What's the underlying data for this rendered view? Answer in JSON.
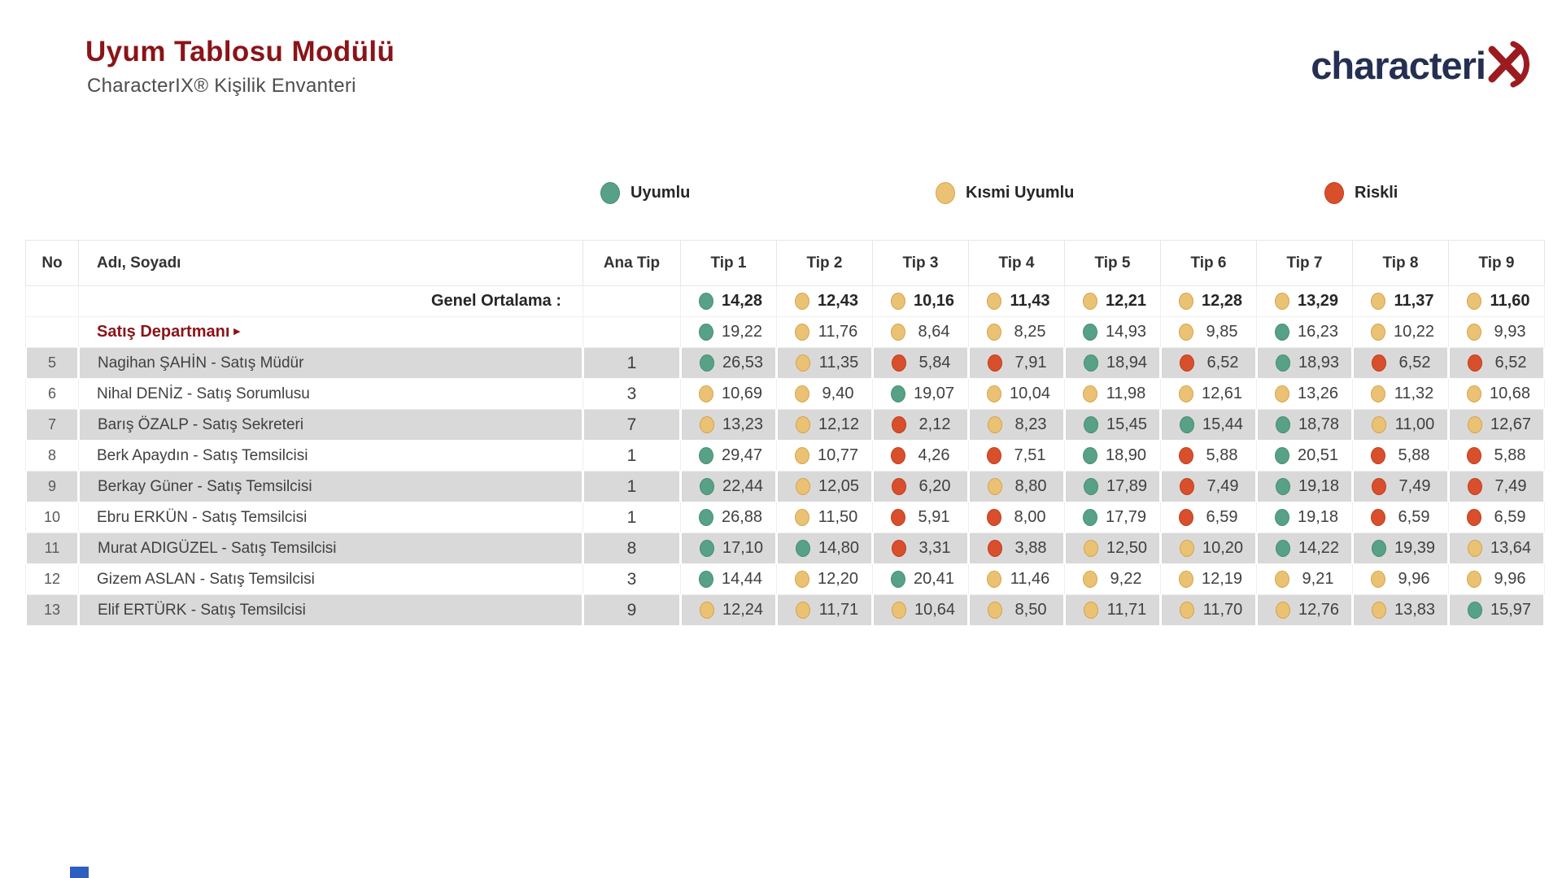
{
  "page": {
    "title": "Uyum Tablosu Modülü",
    "subtitle": "CharacterIX® Kişilik Envanteri"
  },
  "logo": {
    "text": "characteri",
    "mark": "red-x-swoosh"
  },
  "legend": {
    "items": [
      {
        "id": "uyumlu",
        "label": "Uyumlu",
        "color": "#57a287"
      },
      {
        "id": "kismi",
        "label": "Kısmi Uyumlu",
        "color": "#ebc273"
      },
      {
        "id": "riskli",
        "label": "Riskli",
        "color": "#d94f2c"
      }
    ]
  },
  "table": {
    "columns": [
      "No",
      "Adı, Soyadı",
      "Ana Tip",
      "Tip 1",
      "Tip 2",
      "Tip 3",
      "Tip 4",
      "Tip 5",
      "Tip 6",
      "Tip 7",
      "Tip 8",
      "Tip 9"
    ],
    "average_row": {
      "label": "Genel Ortalama :",
      "values": [
        {
          "v": "14,28",
          "s": "uyumlu"
        },
        {
          "v": "12,43",
          "s": "kismi"
        },
        {
          "v": "10,16",
          "s": "kismi"
        },
        {
          "v": "11,43",
          "s": "kismi"
        },
        {
          "v": "12,21",
          "s": "kismi"
        },
        {
          "v": "12,28",
          "s": "kismi"
        },
        {
          "v": "13,29",
          "s": "kismi"
        },
        {
          "v": "11,37",
          "s": "kismi"
        },
        {
          "v": "11,60",
          "s": "kismi"
        }
      ]
    },
    "department_row": {
      "label": "Satış Departmanı",
      "arrow": "►",
      "values": [
        {
          "v": "19,22",
          "s": "uyumlu"
        },
        {
          "v": "11,76",
          "s": "kismi"
        },
        {
          "v": "8,64",
          "s": "kismi"
        },
        {
          "v": "8,25",
          "s": "kismi"
        },
        {
          "v": "14,93",
          "s": "uyumlu"
        },
        {
          "v": "9,85",
          "s": "kismi"
        },
        {
          "v": "16,23",
          "s": "uyumlu"
        },
        {
          "v": "10,22",
          "s": "kismi"
        },
        {
          "v": "9,93",
          "s": "kismi"
        }
      ]
    },
    "rows": [
      {
        "no": "5",
        "name": "Nagihan ŞAHİN - Satış Müdür",
        "ana_tip": "1",
        "values": [
          {
            "v": "26,53",
            "s": "uyumlu"
          },
          {
            "v": "11,35",
            "s": "kismi"
          },
          {
            "v": "5,84",
            "s": "riskli"
          },
          {
            "v": "7,91",
            "s": "riskli"
          },
          {
            "v": "18,94",
            "s": "uyumlu"
          },
          {
            "v": "6,52",
            "s": "riskli"
          },
          {
            "v": "18,93",
            "s": "uyumlu"
          },
          {
            "v": "6,52",
            "s": "riskli"
          },
          {
            "v": "6,52",
            "s": "riskli"
          }
        ]
      },
      {
        "no": "6",
        "name": "Nihal DENİZ - Satış Sorumlusu",
        "ana_tip": "3",
        "values": [
          {
            "v": "10,69",
            "s": "kismi"
          },
          {
            "v": "9,40",
            "s": "kismi"
          },
          {
            "v": "19,07",
            "s": "uyumlu"
          },
          {
            "v": "10,04",
            "s": "kismi"
          },
          {
            "v": "11,98",
            "s": "kismi"
          },
          {
            "v": "12,61",
            "s": "kismi"
          },
          {
            "v": "13,26",
            "s": "kismi"
          },
          {
            "v": "11,32",
            "s": "kismi"
          },
          {
            "v": "10,68",
            "s": "kismi"
          }
        ]
      },
      {
        "no": "7",
        "name": "Barış ÖZALP - Satış Sekreteri",
        "ana_tip": "7",
        "values": [
          {
            "v": "13,23",
            "s": "kismi"
          },
          {
            "v": "12,12",
            "s": "kismi"
          },
          {
            "v": "2,12",
            "s": "riskli"
          },
          {
            "v": "8,23",
            "s": "kismi"
          },
          {
            "v": "15,45",
            "s": "uyumlu"
          },
          {
            "v": "15,44",
            "s": "uyumlu"
          },
          {
            "v": "18,78",
            "s": "uyumlu"
          },
          {
            "v": "11,00",
            "s": "kismi"
          },
          {
            "v": "12,67",
            "s": "kismi"
          }
        ]
      },
      {
        "no": "8",
        "name": "Berk Apaydın - Satış Temsilcisi",
        "ana_tip": "1",
        "values": [
          {
            "v": "29,47",
            "s": "uyumlu"
          },
          {
            "v": "10,77",
            "s": "kismi"
          },
          {
            "v": "4,26",
            "s": "riskli"
          },
          {
            "v": "7,51",
            "s": "riskli"
          },
          {
            "v": "18,90",
            "s": "uyumlu"
          },
          {
            "v": "5,88",
            "s": "riskli"
          },
          {
            "v": "20,51",
            "s": "uyumlu"
          },
          {
            "v": "5,88",
            "s": "riskli"
          },
          {
            "v": "5,88",
            "s": "riskli"
          }
        ]
      },
      {
        "no": "9",
        "name": "Berkay Güner - Satış Temsilcisi",
        "ana_tip": "1",
        "values": [
          {
            "v": "22,44",
            "s": "uyumlu"
          },
          {
            "v": "12,05",
            "s": "kismi"
          },
          {
            "v": "6,20",
            "s": "riskli"
          },
          {
            "v": "8,80",
            "s": "kismi"
          },
          {
            "v": "17,89",
            "s": "uyumlu"
          },
          {
            "v": "7,49",
            "s": "riskli"
          },
          {
            "v": "19,18",
            "s": "uyumlu"
          },
          {
            "v": "7,49",
            "s": "riskli"
          },
          {
            "v": "7,49",
            "s": "riskli"
          }
        ]
      },
      {
        "no": "10",
        "name": "Ebru ERKÜN - Satış Temsilcisi",
        "ana_tip": "1",
        "values": [
          {
            "v": "26,88",
            "s": "uyumlu"
          },
          {
            "v": "11,50",
            "s": "kismi"
          },
          {
            "v": "5,91",
            "s": "riskli"
          },
          {
            "v": "8,00",
            "s": "riskli"
          },
          {
            "v": "17,79",
            "s": "uyumlu"
          },
          {
            "v": "6,59",
            "s": "riskli"
          },
          {
            "v": "19,18",
            "s": "uyumlu"
          },
          {
            "v": "6,59",
            "s": "riskli"
          },
          {
            "v": "6,59",
            "s": "riskli"
          }
        ]
      },
      {
        "no": "11",
        "name": "Murat ADIGÜZEL - Satış Temsilcisi",
        "ana_tip": "8",
        "values": [
          {
            "v": "17,10",
            "s": "uyumlu"
          },
          {
            "v": "14,80",
            "s": "uyumlu"
          },
          {
            "v": "3,31",
            "s": "riskli"
          },
          {
            "v": "3,88",
            "s": "riskli"
          },
          {
            "v": "12,50",
            "s": "kismi"
          },
          {
            "v": "10,20",
            "s": "kismi"
          },
          {
            "v": "14,22",
            "s": "uyumlu"
          },
          {
            "v": "19,39",
            "s": "uyumlu"
          },
          {
            "v": "13,64",
            "s": "kismi"
          }
        ]
      },
      {
        "no": "12",
        "name": "Gizem ASLAN - Satış Temsilcisi",
        "ana_tip": "3",
        "values": [
          {
            "v": "14,44",
            "s": "uyumlu"
          },
          {
            "v": "12,20",
            "s": "kismi"
          },
          {
            "v": "20,41",
            "s": "uyumlu"
          },
          {
            "v": "11,46",
            "s": "kismi"
          },
          {
            "v": "9,22",
            "s": "kismi"
          },
          {
            "v": "12,19",
            "s": "kismi"
          },
          {
            "v": "9,21",
            "s": "kismi"
          },
          {
            "v": "9,96",
            "s": "kismi"
          },
          {
            "v": "9,96",
            "s": "kismi"
          }
        ]
      },
      {
        "no": "13",
        "name": "Elif ERTÜRK - Satış Temsilcisi",
        "ana_tip": "9",
        "values": [
          {
            "v": "12,24",
            "s": "kismi"
          },
          {
            "v": "11,71",
            "s": "kismi"
          },
          {
            "v": "10,64",
            "s": "kismi"
          },
          {
            "v": "8,50",
            "s": "kismi"
          },
          {
            "v": "11,71",
            "s": "kismi"
          },
          {
            "v": "11,70",
            "s": "kismi"
          },
          {
            "v": "12,76",
            "s": "kismi"
          },
          {
            "v": "13,83",
            "s": "kismi"
          },
          {
            "v": "15,97",
            "s": "uyumlu"
          }
        ]
      }
    ]
  },
  "colors": {
    "title_maroon": "#8a1418",
    "uyumlu_green": "#57a287",
    "kismi_yellow": "#ebc273",
    "riskli_red": "#d94f2c",
    "row_alt_gray": "#d9d9d9",
    "logo_navy": "#252f52",
    "logo_red": "#9c1b20"
  }
}
